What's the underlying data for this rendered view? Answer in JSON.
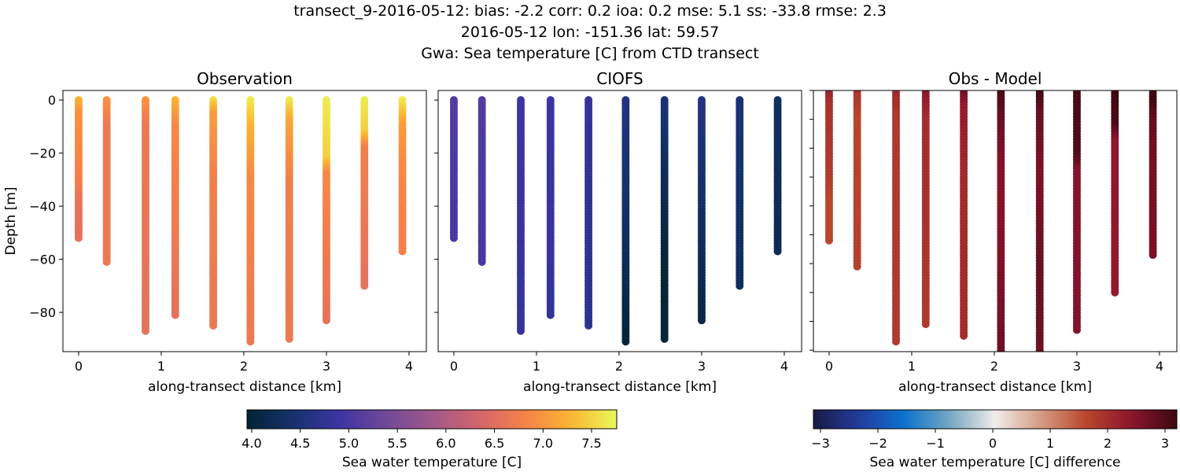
{
  "title_lines": [
    "transect_9-2016-05-12: bias: -2.2  corr: 0.2  ioa: 0.2  mse: 5.1  ss: -33.8  rmse: 2.3",
    "2016-05-12 lon: -151.36 lat: 59.57",
    "Gwa: Sea temperature [C] from CTD transect"
  ],
  "chart_data": [
    {
      "type": "scatter",
      "title": "Observation",
      "xlabel": "along-transect distance [km]",
      "ylabel": "Depth [m]",
      "xlim": [
        -0.19,
        4.21
      ],
      "ylim": [
        -94.8,
        3.6
      ],
      "xticks": [
        0,
        1,
        2,
        3,
        4
      ],
      "yticks": [
        0,
        -20,
        -40,
        -60,
        -80
      ],
      "colormap": "thermal",
      "field": "obs"
    },
    {
      "type": "scatter",
      "title": "CIOFS",
      "xlabel": "along-transect distance [km]",
      "ylabel": "",
      "xlim": [
        -0.19,
        4.21
      ],
      "ylim": [
        -94.8,
        3.6
      ],
      "xticks": [
        0,
        1,
        2,
        3,
        4
      ],
      "yticks": [
        0,
        -20,
        -40,
        -60,
        -80
      ],
      "colormap": "thermal",
      "field": "model"
    },
    {
      "type": "scatter",
      "title": "Obs - Model",
      "xlabel": "along-transect distance [km]",
      "ylabel": "",
      "xlim": [
        -0.19,
        4.21
      ],
      "ylim": [
        -90.5,
        0
      ],
      "xticks": [
        0,
        1,
        2,
        3,
        4
      ],
      "yticks": [
        0,
        -10,
        -20,
        -30,
        -40,
        -50,
        -60,
        -70,
        -80,
        -90
      ],
      "show_ytick_labels": false,
      "colormap": "balance",
      "field": "diff"
    }
  ],
  "profiles": [
    {
      "distance_km": 0.0,
      "max_depth": 52,
      "obs": [
        [
          0,
          7.3
        ],
        [
          5,
          7.0
        ],
        [
          30,
          6.8
        ],
        [
          40,
          6.6
        ],
        [
          52,
          6.6
        ]
      ],
      "model": [
        [
          0,
          5.1
        ],
        [
          52,
          5.0
        ]
      ]
    },
    {
      "distance_km": 0.34,
      "max_depth": 61,
      "obs": [
        [
          0,
          7.0
        ],
        [
          10,
          6.7
        ],
        [
          61,
          6.7
        ]
      ],
      "model": [
        [
          0,
          5.1
        ],
        [
          61,
          5.0
        ]
      ]
    },
    {
      "distance_km": 0.81,
      "max_depth": 87,
      "obs": [
        [
          0,
          7.0
        ],
        [
          10,
          6.7
        ],
        [
          87,
          6.6
        ]
      ],
      "model": [
        [
          0,
          4.9
        ],
        [
          87,
          4.8
        ]
      ]
    },
    {
      "distance_km": 1.17,
      "max_depth": 81,
      "obs": [
        [
          0,
          7.3
        ],
        [
          10,
          6.9
        ],
        [
          81,
          6.6
        ]
      ],
      "model": [
        [
          0,
          4.9
        ],
        [
          81,
          4.8
        ]
      ]
    },
    {
      "distance_km": 1.63,
      "max_depth": 85,
      "obs": [
        [
          0,
          7.6
        ],
        [
          5,
          7.1
        ],
        [
          30,
          6.8
        ],
        [
          85,
          6.7
        ]
      ],
      "model": [
        [
          0,
          4.8
        ],
        [
          85,
          4.7
        ]
      ]
    },
    {
      "distance_km": 2.08,
      "max_depth": 91,
      "obs": [
        [
          0,
          7.7
        ],
        [
          10,
          7.3
        ],
        [
          30,
          6.9
        ],
        [
          91,
          6.7
        ]
      ],
      "model": [
        [
          0,
          4.6
        ],
        [
          40,
          4.4
        ],
        [
          91,
          4.0
        ]
      ]
    },
    {
      "distance_km": 2.55,
      "max_depth": 90,
      "obs": [
        [
          0,
          7.7
        ],
        [
          8,
          7.2
        ],
        [
          30,
          6.8
        ],
        [
          90,
          6.7
        ]
      ],
      "model": [
        [
          0,
          4.5
        ],
        [
          60,
          4.0
        ],
        [
          90,
          4.0
        ]
      ]
    },
    {
      "distance_km": 3.0,
      "max_depth": 83,
      "obs": [
        [
          0,
          7.7
        ],
        [
          22,
          7.5
        ],
        [
          28,
          6.9
        ],
        [
          83,
          6.6
        ]
      ],
      "model": [
        [
          0,
          4.6
        ],
        [
          83,
          4.1
        ]
      ]
    },
    {
      "distance_km": 3.46,
      "max_depth": 70,
      "obs": [
        [
          0,
          7.7
        ],
        [
          12,
          7.5
        ],
        [
          18,
          6.8
        ],
        [
          70,
          6.6
        ]
      ],
      "model": [
        [
          0,
          4.5
        ],
        [
          70,
          4.3
        ]
      ]
    },
    {
      "distance_km": 3.92,
      "max_depth": 57,
      "obs": [
        [
          0,
          7.7
        ],
        [
          10,
          7.1
        ],
        [
          25,
          6.9
        ],
        [
          57,
          6.8
        ]
      ],
      "model": [
        [
          0,
          4.3
        ],
        [
          57,
          4.2
        ]
      ]
    }
  ],
  "colorbars": [
    {
      "label": "Sea water temperature [C]",
      "range": [
        3.95,
        7.8
      ],
      "ticks": [
        "4.0",
        "4.5",
        "5.0",
        "5.5",
        "6.0",
        "6.5",
        "7.0",
        "7.5"
      ],
      "colormap": "thermal"
    },
    {
      "label": "Sea water temperature [C] difference",
      "range": [
        -3.2,
        3.2
      ],
      "ticks": [
        "−3",
        "−2",
        "−1",
        "0",
        "1",
        "2",
        "3"
      ],
      "colormap": "balance"
    }
  ],
  "colormaps": {
    "thermal": [
      "#042333",
      "#15326e",
      "#3e34a4",
      "#704998",
      "#a15889",
      "#d3646d",
      "#f58248",
      "#fbb432",
      "#e8fa5b"
    ],
    "balance": [
      "#181c43",
      "#233b9e",
      "#0c72ce",
      "#73a7bf",
      "#f1eceb",
      "#d69c84",
      "#b8472d",
      "#8c142d",
      "#3c0912"
    ]
  }
}
